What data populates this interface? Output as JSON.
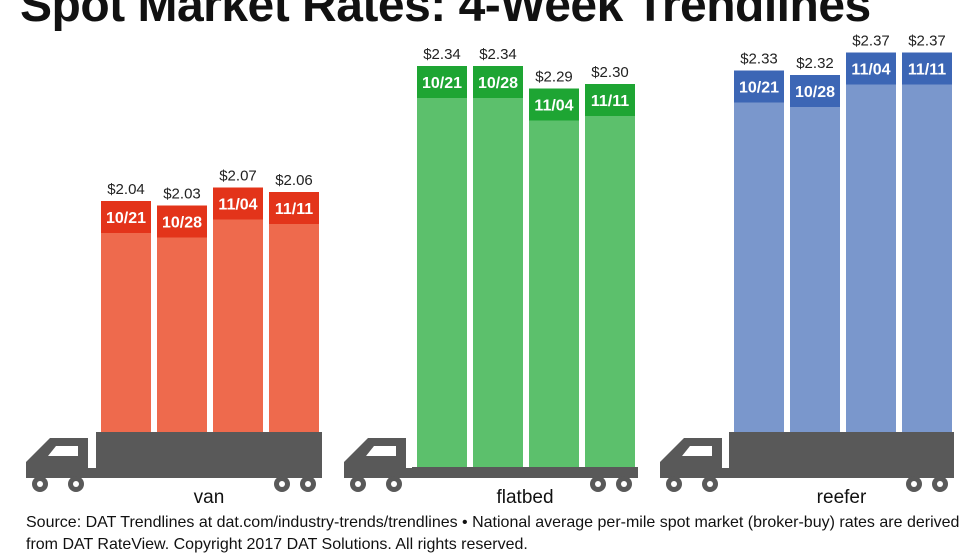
{
  "chart_data": {
    "type": "bar",
    "title": "Spot Market Rates: 4-Week Trendlines",
    "categories": [
      "10/21",
      "10/28",
      "11/04",
      "11/11"
    ],
    "series": [
      {
        "name": "van",
        "values": [
          2.04,
          2.03,
          2.07,
          2.06
        ],
        "value_labels": [
          "$2.04",
          "$2.03",
          "$2.07",
          "$2.06"
        ],
        "color": "#EE6A4D",
        "label_color": "#E3341A"
      },
      {
        "name": "flatbed",
        "values": [
          2.34,
          2.34,
          2.29,
          2.3
        ],
        "value_labels": [
          "$2.34",
          "$2.34",
          "$2.29",
          "$2.30"
        ],
        "color": "#5CC06C",
        "label_color": "#1EA533"
      },
      {
        "name": "reefer",
        "values": [
          2.33,
          2.32,
          2.37,
          2.37
        ],
        "value_labels": [
          "$2.33",
          "$2.32",
          "$2.37",
          "$2.37"
        ],
        "color": "#7A97CC",
        "label_color": "#3C66B5"
      }
    ],
    "truck_color": "#595959"
  },
  "source_note": "Source: DAT Trendlines at dat.com/industry-trends/trendlines • National average per-mile spot market (broker-buy) rates are derived from DAT RateView. Copyright 2017 DAT Solutions. All rights reserved."
}
